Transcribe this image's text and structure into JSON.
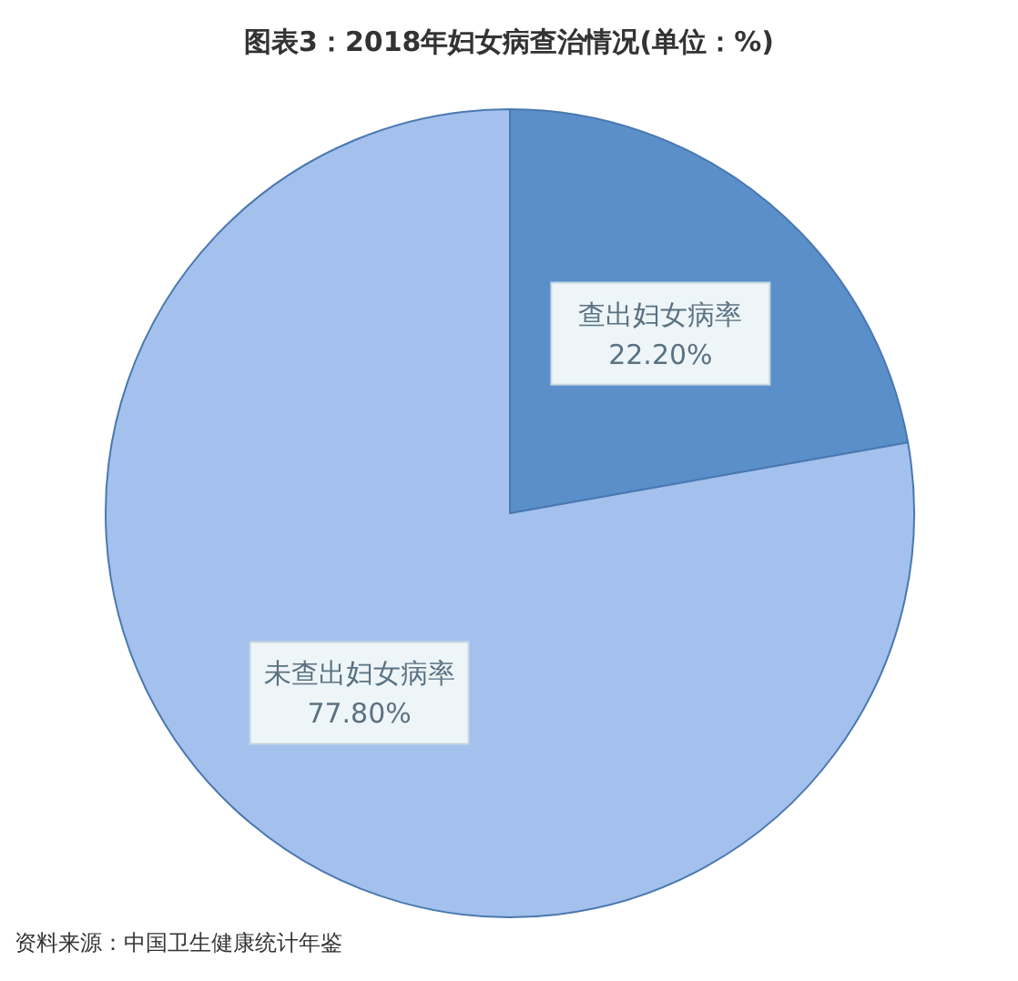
{
  "chart_data": {
    "type": "pie",
    "title": "图表3：2018年妇女病查治情况(单位：%)",
    "categories": [
      "查出妇女病率",
      "未查出妇女病率"
    ],
    "values": [
      22.2,
      77.8
    ],
    "colors": [
      "#5b8fca",
      "#a3c1ec"
    ],
    "value_labels": [
      "22.20%",
      "77.80%"
    ],
    "annotations": [
      "资料来源：中国卫生健康统计年鉴"
    ]
  }
}
